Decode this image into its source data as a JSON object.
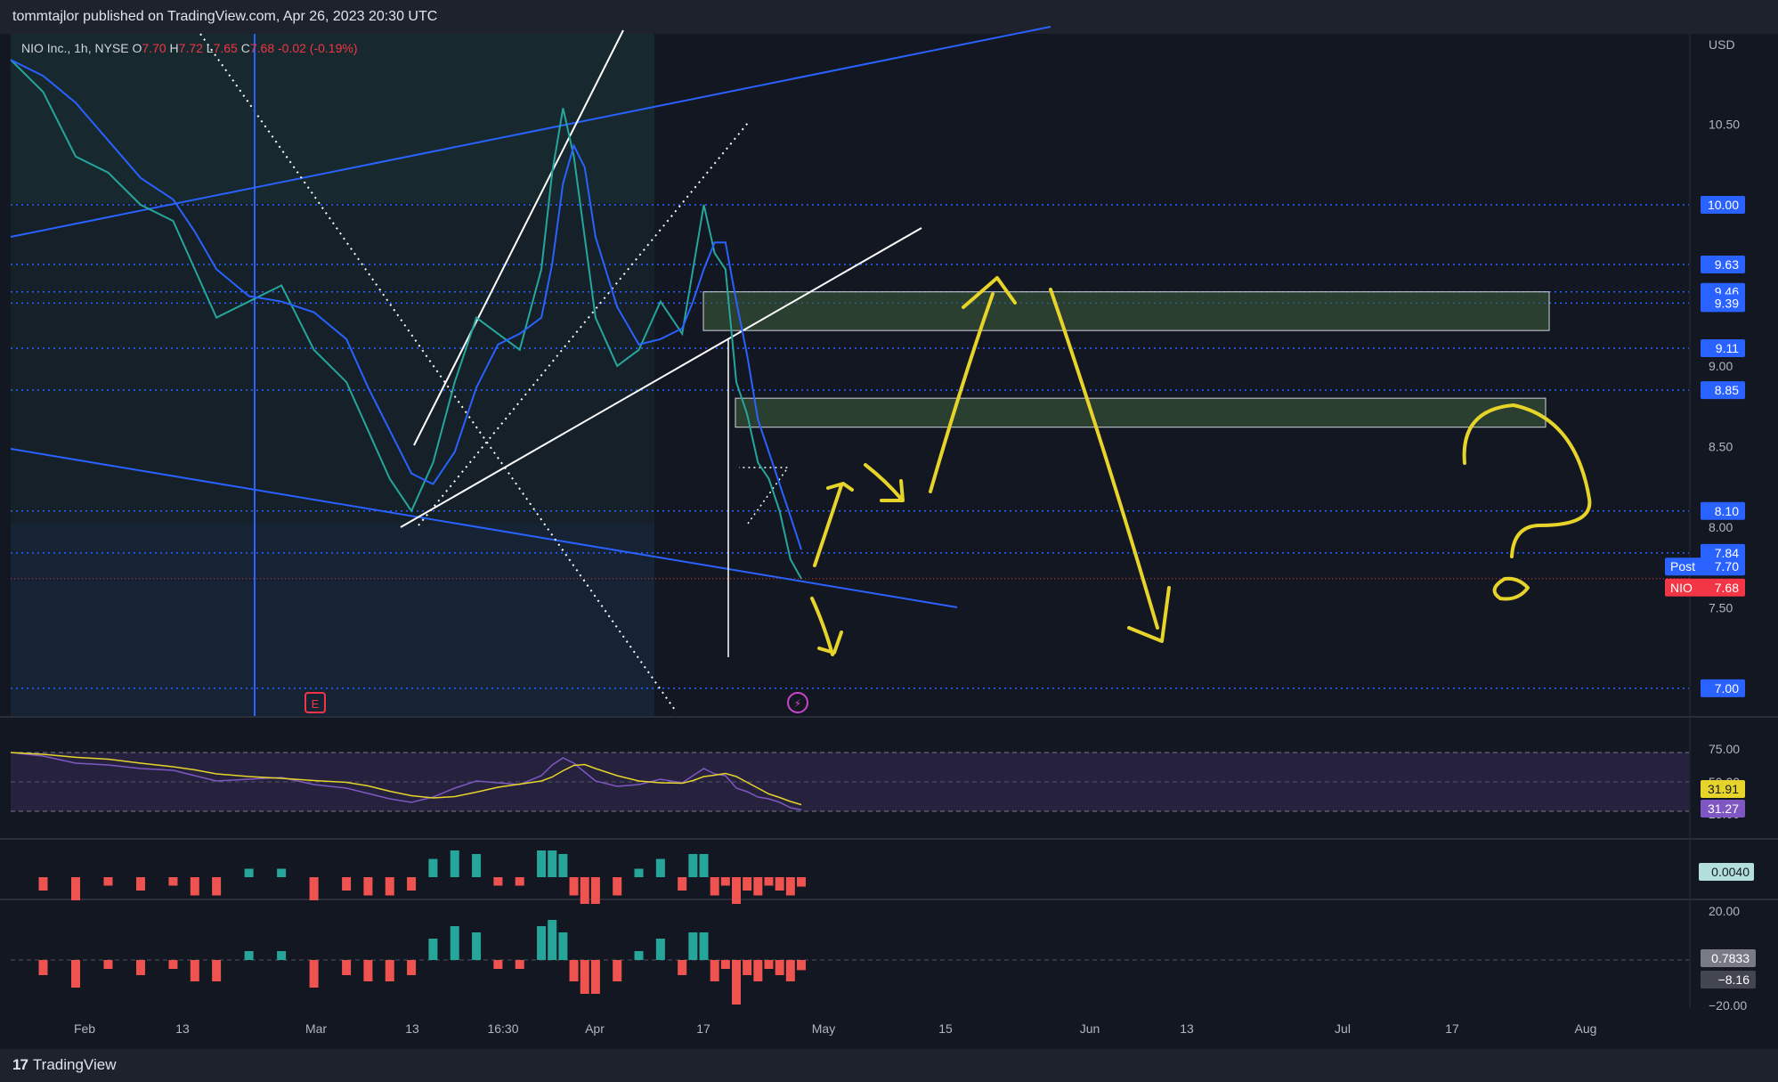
{
  "header": {
    "published_line": "tommtajlor published on TradingView.com, Apr 26, 2023 20:30 UTC"
  },
  "legend": {
    "symbol": "NIO Inc., 1h, NYSE",
    "o_label": "O",
    "o_value": "7.70",
    "h_label": "H",
    "h_value": "7.72",
    "l_label": "L",
    "l_value": "7.65",
    "c_label": "C",
    "c_value": "7.68",
    "change": "-0.02 (-0.19%)"
  },
  "footer": {
    "brand": "TradingView",
    "logo_mark": "17"
  },
  "colors": {
    "background": "#131722",
    "panel": "#1e222d",
    "bull": "#26a69a",
    "bear": "#ef5350",
    "ma": "#2962ff",
    "level": "#2962ff",
    "annotation": "#e6d42a",
    "rsi": "#7e57c2",
    "rsi_signal": "#e6d42a",
    "zone_fill": "#3b5a3a"
  },
  "chart_data": {
    "type": "candlestick",
    "symbol": "NIO",
    "timeframe": "1h",
    "price_axis": {
      "currency": "USD",
      "ticks": [
        "10.50",
        "9.00",
        "8.50",
        "8.00",
        "7.50"
      ],
      "range": [
        6.85,
        11.05
      ]
    },
    "level_tags": [
      "10.00",
      "9.63",
      "9.46",
      "9.39",
      "9.11",
      "8.85",
      "8.10",
      "7.84",
      "7.00"
    ],
    "last_price_tags": [
      {
        "label": "Post",
        "value": "7.70"
      },
      {
        "label": "NIO",
        "value": "7.68"
      }
    ],
    "time_axis": [
      "Feb",
      "13",
      "Mar",
      "13",
      "16:30",
      "Apr",
      "17",
      "May",
      "15",
      "Jun",
      "13",
      "Jul",
      "17",
      "Aug"
    ],
    "price_path": [
      [
        0,
        10.9
      ],
      [
        3,
        10.7
      ],
      [
        6,
        10.3
      ],
      [
        9,
        10.2
      ],
      [
        12,
        10.0
      ],
      [
        15,
        9.9
      ],
      [
        17,
        9.6
      ],
      [
        19,
        9.3
      ],
      [
        22,
        9.4
      ],
      [
        25,
        9.5
      ],
      [
        28,
        9.1
      ],
      [
        31,
        8.9
      ],
      [
        33,
        8.6
      ],
      [
        35,
        8.3
      ],
      [
        37,
        8.1
      ],
      [
        39,
        8.4
      ],
      [
        41,
        8.9
      ],
      [
        43,
        9.3
      ],
      [
        45,
        9.2
      ],
      [
        47,
        9.1
      ],
      [
        49,
        9.6
      ],
      [
        50,
        10.2
      ],
      [
        51,
        10.6
      ],
      [
        52,
        10.3
      ],
      [
        53,
        9.8
      ],
      [
        54,
        9.3
      ],
      [
        56,
        9.0
      ],
      [
        58,
        9.1
      ],
      [
        60,
        9.4
      ],
      [
        62,
        9.2
      ],
      [
        63,
        9.6
      ],
      [
        64,
        10.0
      ],
      [
        65,
        9.7
      ],
      [
        66,
        9.6
      ],
      [
        67,
        8.9
      ],
      [
        68,
        8.7
      ],
      [
        69,
        8.4
      ],
      [
        70,
        8.3
      ],
      [
        71,
        8.1
      ],
      [
        72,
        7.8
      ],
      [
        73,
        7.68
      ]
    ],
    "zones": [
      {
        "top": 9.46,
        "bottom": 9.22
      },
      {
        "top": 8.8,
        "bottom": 8.62
      }
    ],
    "rsi": {
      "ticks": [
        "75.00",
        "50.00",
        "25.00"
      ],
      "values": [
        "31.91",
        "31.27"
      ]
    },
    "oscillator": {
      "value": "0.0040"
    },
    "histogram": {
      "ticks": [
        "20.00",
        "−20.00"
      ],
      "values": [
        "0.7833",
        "−8.16"
      ]
    }
  }
}
